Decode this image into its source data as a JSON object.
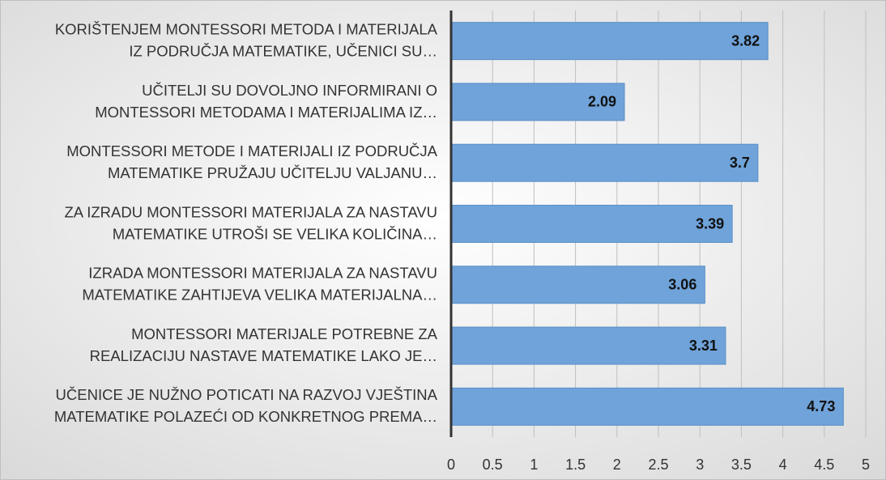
{
  "chart_data": {
    "type": "bar",
    "orientation": "horizontal",
    "categories": [
      [
        "KORIŠTENJEM MONTESSORI METODA I MATERIJALA",
        "IZ PODRUČJA MATEMATIKE, UČENICI SU…"
      ],
      [
        "UČITELJI SU DOVOLJNO INFORMIRANI O",
        "MONTESSORI METODAMA I MATERIJALIMA IZ…"
      ],
      [
        "MONTESSORI METODE I MATERIJALI IZ PODRUČJA",
        "MATEMATIKE PRUŽAJU UČITELJU VALJANU…"
      ],
      [
        "ZA IZRADU MONTESSORI MATERIJALA ZA NASTAVU",
        "MATEMATIKE UTROŠI SE VELIKA KOLIČINA…"
      ],
      [
        "IZRADA MONTESSORI MATERIJALA ZA NASTAVU",
        "MATEMATIKE ZAHTIJEVA VELIKA MATERIJALNA…"
      ],
      [
        "MONTESSORI MATERIJALE POTREBNE ZA",
        "REALIZACIJU NASTAVE MATEMATIKE LAKO JE…"
      ],
      [
        "UČENICE JE NUŽNO POTICATI NA RAZVOJ VJEŠTINA",
        "MATEMATIKE POLAZEĆI OD KONKRETNOG PREMA…"
      ]
    ],
    "values": [
      3.82,
      2.09,
      3.7,
      3.39,
      3.06,
      3.31,
      4.73
    ],
    "color": "#6fa3d9",
    "xlim": [
      0,
      5
    ],
    "xticks": [
      0,
      0.5,
      1,
      1.5,
      2,
      2.5,
      3,
      3.5,
      4,
      4.5,
      5
    ],
    "grid": true
  }
}
